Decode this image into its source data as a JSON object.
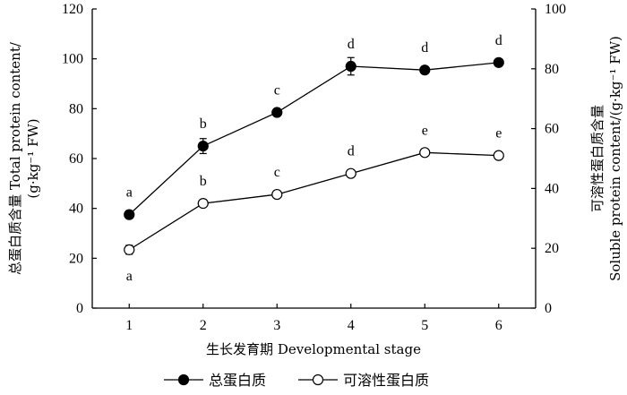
{
  "chart_data": {
    "type": "line",
    "x": [
      1,
      2,
      3,
      4,
      5,
      6
    ],
    "xlabel": "生长发育期 Developmental stage",
    "xlim": [
      0.5,
      6.5
    ],
    "ylabel_left_lines": [
      "总蛋白质含量 Total protein content/",
      "(g·kg⁻¹ FW)"
    ],
    "ylabel_right_lines": [
      "可溶性蛋白质含量",
      "Soluble protein content/(g·kg⁻¹ FW)"
    ],
    "ylim_left": [
      0,
      120
    ],
    "ylim_right": [
      0,
      100
    ],
    "yticks_left": [
      "0",
      "20",
      "40",
      "60",
      "80",
      "100",
      "120"
    ],
    "yticks_right": [
      "0",
      "20",
      "40",
      "60",
      "80",
      "100"
    ],
    "grid": false,
    "series": [
      {
        "name": "总蛋白质",
        "axis": "left",
        "marker": "filled-circle",
        "values": [
          37.5,
          65,
          78.5,
          97,
          95.5,
          98.5
        ],
        "errors": [
          1.5,
          3,
          1,
          3.5,
          1,
          1.5
        ],
        "labels": [
          "a",
          "b",
          "c",
          "d",
          "d",
          "d"
        ]
      },
      {
        "name": "可溶性蛋白质",
        "axis": "right",
        "marker": "open-circle",
        "values": [
          19.5,
          35,
          38,
          45,
          52,
          51
        ],
        "errors": [
          1.5,
          1,
          1,
          1,
          1,
          1
        ],
        "labels": [
          "a",
          "b",
          "c",
          "d",
          "e",
          "e"
        ]
      }
    ],
    "legend_position": "bottom"
  }
}
